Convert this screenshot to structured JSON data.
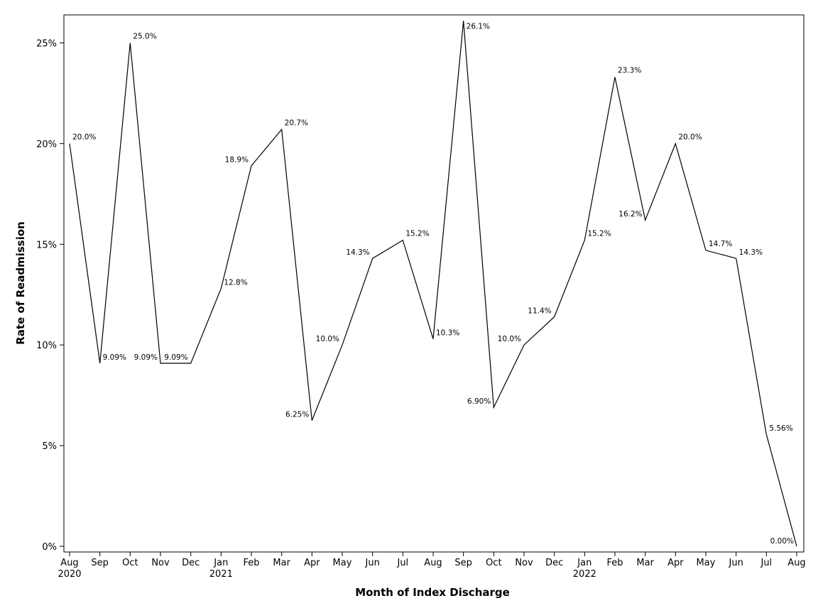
{
  "chart_data": {
    "type": "line",
    "title": "",
    "xlabel": "Month of Index Discharge",
    "ylabel": "Rate of Readmission",
    "ylim": [
      0,
      26.5
    ],
    "yticks": [
      {
        "value": 0,
        "label": "0%"
      },
      {
        "value": 5,
        "label": "5%"
      },
      {
        "value": 10,
        "label": "10%"
      },
      {
        "value": 15,
        "label": "15%"
      },
      {
        "value": 20,
        "label": "20%"
      },
      {
        "value": 25,
        "label": "25%"
      }
    ],
    "grid": false,
    "legend": "none",
    "points": [
      {
        "month": "Aug",
        "year": "2020",
        "value": 20.0,
        "label": "20.0%",
        "label_pos": "right-up"
      },
      {
        "month": "Sep",
        "year": "",
        "value": 9.09,
        "label": "9.09%",
        "label_pos": "right"
      },
      {
        "month": "Oct",
        "year": "",
        "value": 25.0,
        "label": "25.0%",
        "label_pos": "right-up"
      },
      {
        "month": "Nov",
        "year": "",
        "value": 9.09,
        "label": "9.09%",
        "label_pos": "left"
      },
      {
        "month": "Dec",
        "year": "",
        "value": 9.09,
        "label": "9.09%",
        "label_pos": "left"
      },
      {
        "month": "Jan",
        "year": "2021",
        "value": 12.8,
        "label": "12.8%",
        "label_pos": "right"
      },
      {
        "month": "Feb",
        "year": "",
        "value": 18.9,
        "label": "18.9%",
        "label_pos": "left"
      },
      {
        "month": "Mar",
        "year": "",
        "value": 20.7,
        "label": "20.7%",
        "label_pos": "right-up"
      },
      {
        "month": "Apr",
        "year": "",
        "value": 6.25,
        "label": "6.25%",
        "label_pos": "left"
      },
      {
        "month": "May",
        "year": "",
        "value": 10.0,
        "label": "10.0%",
        "label_pos": "left"
      },
      {
        "month": "Jun",
        "year": "",
        "value": 14.3,
        "label": "14.3%",
        "label_pos": "left"
      },
      {
        "month": "Jul",
        "year": "",
        "value": 15.2,
        "label": "15.2%",
        "label_pos": "right-up"
      },
      {
        "month": "Aug",
        "year": "",
        "value": 10.3,
        "label": "10.3%",
        "label_pos": "right"
      },
      {
        "month": "Sep",
        "year": "",
        "value": 26.1,
        "label": "26.1%",
        "label_pos": "right-down"
      },
      {
        "month": "Oct",
        "year": "",
        "value": 6.9,
        "label": "6.90%",
        "label_pos": "left"
      },
      {
        "month": "Nov",
        "year": "",
        "value": 10.0,
        "label": "10.0%",
        "label_pos": "left"
      },
      {
        "month": "Dec",
        "year": "",
        "value": 11.4,
        "label": "11.4%",
        "label_pos": "left"
      },
      {
        "month": "Jan",
        "year": "2022",
        "value": 15.2,
        "label": "15.2%",
        "label_pos": "right-up"
      },
      {
        "month": "Feb",
        "year": "",
        "value": 23.3,
        "label": "23.3%",
        "label_pos": "right-up"
      },
      {
        "month": "Mar",
        "year": "",
        "value": 16.2,
        "label": "16.2%",
        "label_pos": "left"
      },
      {
        "month": "Apr",
        "year": "",
        "value": 20.0,
        "label": "20.0%",
        "label_pos": "right-up"
      },
      {
        "month": "May",
        "year": "",
        "value": 14.7,
        "label": "14.7%",
        "label_pos": "right-up"
      },
      {
        "month": "Jun",
        "year": "",
        "value": 14.3,
        "label": "14.3%",
        "label_pos": "right"
      },
      {
        "month": "Jul",
        "year": "",
        "value": 5.56,
        "label": "5.56%",
        "label_pos": "right"
      },
      {
        "month": "Aug",
        "year": "",
        "value": 0.0,
        "label": "0.00%",
        "label_pos": "left-up"
      }
    ]
  }
}
